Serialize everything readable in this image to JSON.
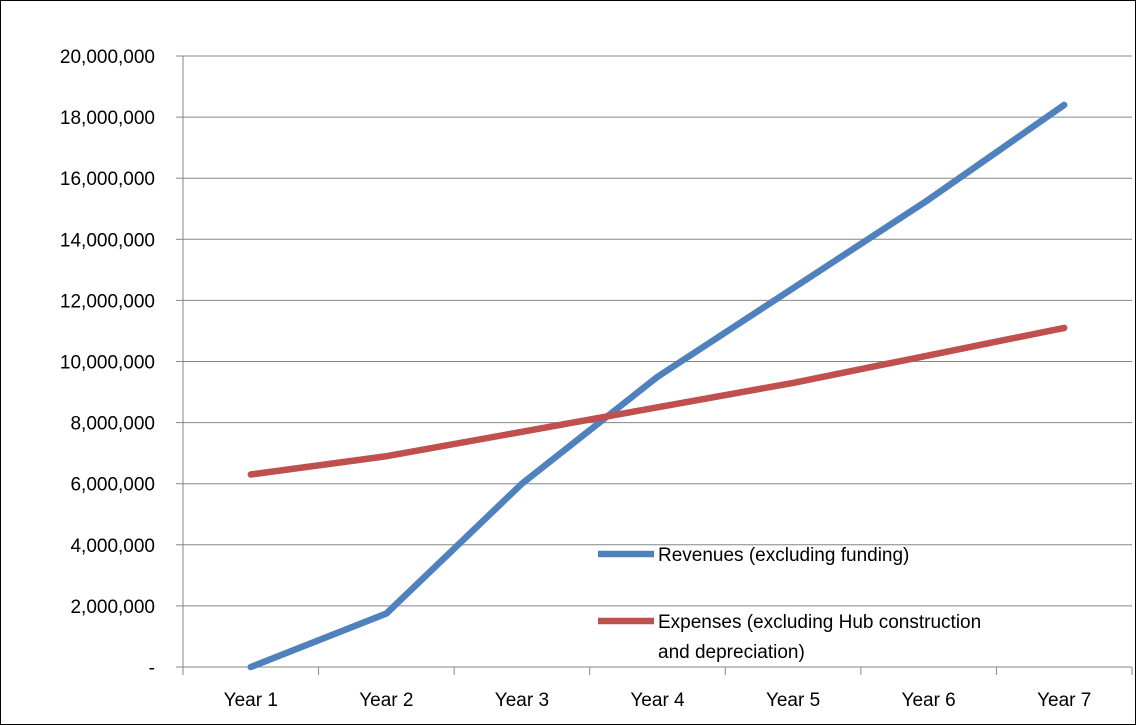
{
  "chart_data": {
    "type": "line",
    "title": "",
    "xlabel": "",
    "ylabel": "",
    "categories": [
      "Year 1",
      "Year 2",
      "Year 3",
      "Year 4",
      "Year 5",
      "Year 6",
      "Year 7"
    ],
    "ylim": [
      0,
      20000000
    ],
    "ytick_values": [
      0,
      2000000,
      4000000,
      6000000,
      8000000,
      10000000,
      12000000,
      14000000,
      16000000,
      18000000,
      20000000
    ],
    "ytick_labels": [
      "-",
      "2,000,000",
      "4,000,000",
      "6,000,000",
      "8,000,000",
      "10,000,000",
      "12,000,000",
      "14,000,000",
      "16,000,000",
      "18,000,000",
      "20,000,000"
    ],
    "grid": true,
    "legend_position": "bottom-right (inside plot)",
    "series": [
      {
        "name": "Revenues (excluding funding)",
        "color": "#4F81BD",
        "values": [
          0,
          1750000,
          6000000,
          9500000,
          12400000,
          15300000,
          18400000
        ]
      },
      {
        "name": "Expenses (excluding Hub construction and depreciation)",
        "color": "#C0504D",
        "values": [
          6300000,
          6900000,
          7700000,
          8500000,
          9300000,
          10200000,
          11100000
        ]
      }
    ]
  }
}
